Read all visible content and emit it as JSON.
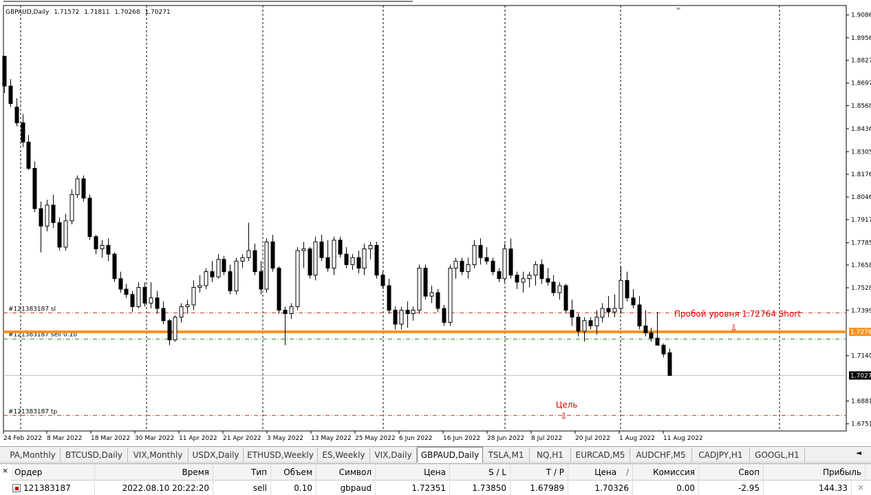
{
  "chart": {
    "symbol_line": {
      "name": "GBPAUD,Daily",
      "open": "1.71572",
      "high": "1.71811",
      "low": "1.70268",
      "close": "1.70271"
    },
    "price_axis_labels": [
      "1.9086",
      "1.8956",
      "1.8827",
      "1.8697",
      "1.8568",
      "1.8436",
      "1.8305",
      "1.8176",
      "1.8046",
      "1.7917",
      "1.7785",
      "1.7658",
      "1.7528",
      "1.7399",
      "1.7140",
      "1.6881",
      "1.6751"
    ],
    "date_axis_labels": [
      "24 Feb 2022",
      "8 Mar 2022",
      "18 Mar 2022",
      "30 Mar 2022",
      "11 Apr 2022",
      "21 Apr 2022",
      "3 May 2022",
      "13 May 2022",
      "25 May 2022",
      "6 Jun 2022",
      "16 Jun 2022",
      "28 Jun 2022",
      "8 Jul 2022",
      "20 Jul 2022",
      "1 Aug 2022",
      "11 Aug 2022"
    ],
    "level_tags": {
      "level_price": "1.7276",
      "current_price": "1.7027"
    },
    "order_lines": {
      "sl_label": "#121383187 sl",
      "entry_label": "#121383187 sell 0.10",
      "tp_label": "#121383187 tp"
    },
    "annotations": {
      "breakout_text": "Пробой уровня 1.72764 Short",
      "target_text": "Цель",
      "arrow_glyph": "⇩"
    },
    "colors": {
      "level_line": "#f7931e",
      "annotation": "#e00000",
      "sl_line": "#c0392b",
      "entry_line": "#2e8b2e",
      "tp_line": "#c0392b",
      "bull_candle": "#ffffff",
      "bear_candle": "#000000"
    },
    "candles": [
      [
        1.885,
        1.885,
        1.864,
        1.868
      ],
      [
        1.868,
        1.872,
        1.856,
        1.858
      ],
      [
        1.856,
        1.861,
        1.845,
        1.847
      ],
      [
        1.847,
        1.852,
        1.833,
        1.836
      ],
      [
        1.836,
        1.84,
        1.82,
        1.821
      ],
      [
        1.821,
        1.825,
        1.796,
        1.798
      ],
      [
        1.798,
        1.802,
        1.773,
        1.788
      ],
      [
        1.788,
        1.803,
        1.785,
        1.8
      ],
      [
        1.8,
        1.806,
        1.787,
        1.79
      ],
      [
        1.79,
        1.793,
        1.774,
        1.776
      ],
      [
        1.776,
        1.795,
        1.774,
        1.791
      ],
      [
        1.791,
        1.809,
        1.789,
        1.806
      ],
      [
        1.806,
        1.817,
        1.804,
        1.815
      ],
      [
        1.815,
        1.817,
        1.802,
        1.804
      ],
      [
        1.804,
        1.806,
        1.78,
        1.782
      ],
      [
        1.782,
        1.783,
        1.772,
        1.775
      ],
      [
        1.775,
        1.78,
        1.77,
        1.777
      ],
      [
        1.777,
        1.781,
        1.768,
        1.772
      ],
      [
        1.772,
        1.773,
        1.756,
        1.758
      ],
      [
        1.758,
        1.762,
        1.75,
        1.752
      ],
      [
        1.752,
        1.755,
        1.747,
        1.749
      ],
      [
        1.749,
        1.751,
        1.739,
        1.742
      ],
      [
        1.742,
        1.756,
        1.741,
        1.753
      ],
      [
        1.753,
        1.756,
        1.742,
        1.744
      ],
      [
        1.744,
        1.756,
        1.741,
        1.747
      ],
      [
        1.747,
        1.751,
        1.738,
        1.741
      ],
      [
        1.741,
        1.745,
        1.732,
        1.734
      ],
      [
        1.734,
        1.735,
        1.72,
        1.723
      ],
      [
        1.723,
        1.737,
        1.722,
        1.736
      ],
      [
        1.736,
        1.744,
        1.733,
        1.742
      ],
      [
        1.742,
        1.746,
        1.738,
        1.743
      ],
      [
        1.743,
        1.757,
        1.74,
        1.753
      ],
      [
        1.753,
        1.76,
        1.75,
        1.754
      ],
      [
        1.754,
        1.764,
        1.752,
        1.762
      ],
      [
        1.762,
        1.768,
        1.756,
        1.759
      ],
      [
        1.759,
        1.772,
        1.758,
        1.769
      ],
      [
        1.769,
        1.771,
        1.76,
        1.762
      ],
      [
        1.762,
        1.766,
        1.749,
        1.751
      ],
      [
        1.751,
        1.77,
        1.749,
        1.768
      ],
      [
        1.768,
        1.772,
        1.764,
        1.77
      ],
      [
        1.77,
        1.79,
        1.768,
        1.774
      ],
      [
        1.774,
        1.778,
        1.76,
        1.762
      ],
      [
        1.762,
        1.768,
        1.749,
        1.752
      ],
      [
        1.752,
        1.781,
        1.75,
        1.779
      ],
      [
        1.779,
        1.783,
        1.762,
        1.764
      ],
      [
        1.764,
        1.765,
        1.738,
        1.74
      ],
      [
        1.74,
        1.742,
        1.72,
        1.738
      ],
      [
        1.738,
        1.744,
        1.735,
        1.742
      ],
      [
        1.742,
        1.776,
        1.74,
        1.774
      ],
      [
        1.774,
        1.779,
        1.764,
        1.775
      ],
      [
        1.775,
        1.776,
        1.758,
        1.76
      ],
      [
        1.76,
        1.782,
        1.757,
        1.779
      ],
      [
        1.779,
        1.783,
        1.768,
        1.77
      ],
      [
        1.77,
        1.78,
        1.762,
        1.764
      ],
      [
        1.764,
        1.782,
        1.76,
        1.78
      ],
      [
        1.78,
        1.782,
        1.77,
        1.772
      ],
      [
        1.772,
        1.776,
        1.764,
        1.766
      ],
      [
        1.766,
        1.772,
        1.763,
        1.77
      ],
      [
        1.77,
        1.774,
        1.761,
        1.764
      ],
      [
        1.764,
        1.778,
        1.76,
        1.775
      ],
      [
        1.775,
        1.779,
        1.769,
        1.777
      ],
      [
        1.777,
        1.779,
        1.758,
        1.76
      ],
      [
        1.76,
        1.762,
        1.752,
        1.754
      ],
      [
        1.754,
        1.758,
        1.738,
        1.74
      ],
      [
        1.74,
        1.742,
        1.729,
        1.732
      ],
      [
        1.732,
        1.742,
        1.729,
        1.74
      ],
      [
        1.74,
        1.745,
        1.73,
        1.738
      ],
      [
        1.738,
        1.742,
        1.734,
        1.74
      ],
      [
        1.74,
        1.766,
        1.738,
        1.764
      ],
      [
        1.764,
        1.766,
        1.746,
        1.748
      ],
      [
        1.748,
        1.754,
        1.744,
        1.75
      ],
      [
        1.75,
        1.752,
        1.739,
        1.741
      ],
      [
        1.741,
        1.743,
        1.731,
        1.733
      ],
      [
        1.733,
        1.766,
        1.731,
        1.764
      ],
      [
        1.764,
        1.77,
        1.758,
        1.768
      ],
      [
        1.768,
        1.77,
        1.76,
        1.762
      ],
      [
        1.762,
        1.77,
        1.758,
        1.766
      ],
      [
        1.766,
        1.78,
        1.764,
        1.777
      ],
      [
        1.777,
        1.781,
        1.766,
        1.77
      ],
      [
        1.77,
        1.776,
        1.766,
        1.768
      ],
      [
        1.768,
        1.77,
        1.76,
        1.762
      ],
      [
        1.762,
        1.764,
        1.756,
        1.758
      ],
      [
        1.758,
        1.778,
        1.756,
        1.775
      ],
      [
        1.775,
        1.781,
        1.758,
        1.76
      ],
      [
        1.76,
        1.762,
        1.752,
        1.756
      ],
      [
        1.756,
        1.762,
        1.75,
        1.758
      ],
      [
        1.758,
        1.762,
        1.753,
        1.76
      ],
      [
        1.76,
        1.768,
        1.754,
        1.766
      ],
      [
        1.766,
        1.769,
        1.755,
        1.758
      ],
      [
        1.758,
        1.764,
        1.754,
        1.756
      ],
      [
        1.756,
        1.76,
        1.748,
        1.75
      ],
      [
        1.75,
        1.756,
        1.746,
        1.754
      ],
      [
        1.754,
        1.755,
        1.738,
        1.74
      ],
      [
        1.74,
        1.746,
        1.731,
        1.736
      ],
      [
        1.736,
        1.738,
        1.725,
        1.728
      ],
      [
        1.728,
        1.736,
        1.722,
        1.734
      ],
      [
        1.734,
        1.736,
        1.729,
        1.731
      ],
      [
        1.731,
        1.74,
        1.726,
        1.736
      ],
      [
        1.736,
        1.744,
        1.733,
        1.741
      ],
      [
        1.741,
        1.748,
        1.736,
        1.739
      ],
      [
        1.739,
        1.749,
        1.736,
        1.741
      ],
      [
        1.741,
        1.765,
        1.738,
        1.757
      ],
      [
        1.757,
        1.762,
        1.745,
        1.747
      ],
      [
        1.747,
        1.752,
        1.741,
        1.743
      ],
      [
        1.743,
        1.748,
        1.729,
        1.731
      ],
      [
        1.731,
        1.74,
        1.725,
        1.727
      ],
      [
        1.727,
        1.73,
        1.722,
        1.724
      ],
      [
        1.724,
        1.739,
        1.72,
        1.72
      ],
      [
        1.72,
        1.721,
        1.713,
        1.715
      ],
      [
        1.7157,
        1.7181,
        1.7027,
        1.7027
      ]
    ],
    "axis_range": [
      1.671,
      1.914
    ]
  },
  "tabs": [
    {
      "label": "PA,Monthly"
    },
    {
      "label": "BTCUSD,Daily"
    },
    {
      "label": "VIX,Monthly"
    },
    {
      "label": "USDX,Daily"
    },
    {
      "label": "ETHUSD,Weekly"
    },
    {
      "label": "ES,Weekly"
    },
    {
      "label": "VIX,Daily"
    },
    {
      "label": "GBPAUD,Daily"
    },
    {
      "label": "TSLA,M1"
    },
    {
      "label": "NQ,H1"
    },
    {
      "label": "EURCAD,M5"
    },
    {
      "label": "AUDCHF,M5"
    },
    {
      "label": "CADJPY,H1"
    },
    {
      "label": "GOOGL,H1"
    }
  ],
  "tabs_scroll_glyph": "◄",
  "terminal": {
    "close_glyph": "×",
    "headers": {
      "order": "Ордер",
      "time": "Время",
      "type": "Тип",
      "volume": "Объем",
      "symbol": "Символ",
      "price": "Цена",
      "sl": "S / L",
      "tp": "T / P",
      "price2": "Цена",
      "price2_mark": "/",
      "commission": "Комиссия",
      "swap": "Своп",
      "profit": "Прибыль"
    },
    "row": {
      "order": "121383187",
      "time": "2022.08.10 20:22:20",
      "type": "sell",
      "volume": "0.10",
      "symbol": "gbpaud",
      "price": "1.72351",
      "sl": "1.73850",
      "tp": "1.67989",
      "price2": "1.70326",
      "commission": "0.00",
      "swap": "-2.95",
      "profit": "144.33",
      "close_glyph": "×"
    }
  }
}
